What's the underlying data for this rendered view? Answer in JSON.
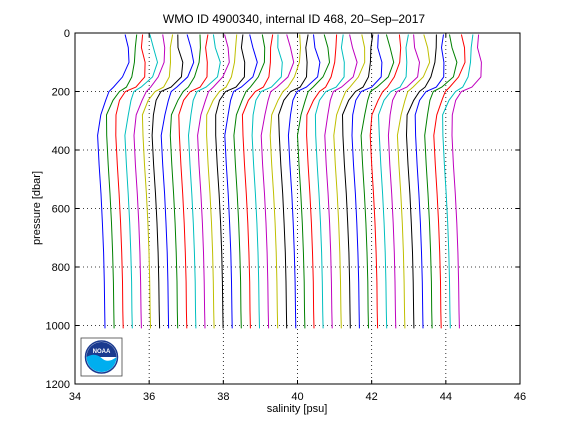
{
  "chart_data": {
    "type": "line",
    "title": "WMO ID 4900340, internal ID 468, 20–Sep–2017",
    "xlabel": "salinity [psu]",
    "ylabel": "pressure [dbar]",
    "xlim": [
      34,
      46
    ],
    "ylim": [
      0,
      1200
    ],
    "y_reversed": true,
    "xticks": [
      "34",
      "36",
      "38",
      "40",
      "42",
      "44",
      "46"
    ],
    "yticks": [
      "0",
      "200",
      "400",
      "600",
      "800",
      "1000",
      "1200"
    ],
    "grid": "dotted",
    "profile_count": 40,
    "profile_start_offset_psu": 0.25,
    "offset_step_psu": 0.245,
    "series_colors": [
      "#0000ff",
      "#008000",
      "#ff0000",
      "#00bfbf",
      "#bf00bf",
      "#bfbf00",
      "#000000"
    ],
    "profile_shape": {
      "pressure": [
        5,
        50,
        100,
        150,
        185,
        200,
        230,
        280,
        350,
        450,
        550,
        650,
        750,
        850,
        950,
        1010
      ],
      "salinity_base": [
        35.1,
        35.12,
        35.17,
        35.08,
        34.85,
        34.65,
        34.52,
        34.4,
        34.36,
        34.4,
        34.45,
        34.49,
        34.52,
        34.54,
        34.55,
        34.56
      ]
    }
  },
  "logo": {
    "text": "NOAA",
    "ring_color": "#1a3a8f",
    "wave_color": "#00aeef"
  }
}
